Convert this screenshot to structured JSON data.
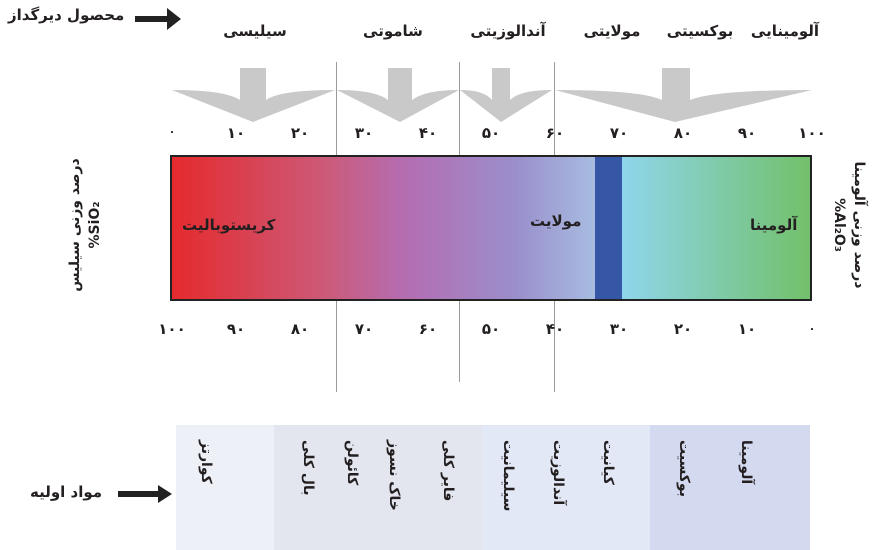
{
  "header": {
    "product_label": "محصول دیرگداز",
    "categories": [
      "سیلیسی",
      "شاموتی",
      "آندالوزیتی",
      "مولایتی",
      "بوکسیتی",
      "آلومینایی"
    ]
  },
  "alumina_scale": [
    "٠",
    "١٠",
    "٢٠",
    "٣٠",
    "۴٠",
    "۵٠",
    "۶٠",
    "٧٠",
    "٨٠",
    "٩٠",
    "١٠٠"
  ],
  "silica_scale": [
    "١٠٠",
    "٩٠",
    "٨٠",
    "٧٠",
    "۶٠",
    "۵٠",
    "۴٠",
    "٣٠",
    "٢٠",
    "١٠",
    "٠"
  ],
  "bar": {
    "labels": [
      "کریستوبالیت",
      "مولایت",
      "آلومینا"
    ]
  },
  "left_axis": {
    "line1": "درصد وزنی سیلیس",
    "line2": "%SiO₂"
  },
  "right_axis": {
    "line1": "درصد وزنی آلومینا",
    "line2": "%Al₂O₃"
  },
  "materials": {
    "label": "مواد اولیه",
    "items": [
      "کوارتز",
      "بال کلی",
      "کائولن",
      "خاک نسوز",
      "فایر کلی",
      "سیلیمانیت",
      "آندالوزیت",
      "کیانیت",
      "بوکسیت",
      "آلومینا"
    ],
    "group_colors": [
      "#eef0f7",
      "#e3e6ee",
      "#e3e8f6",
      "#d3d9ef"
    ]
  }
}
